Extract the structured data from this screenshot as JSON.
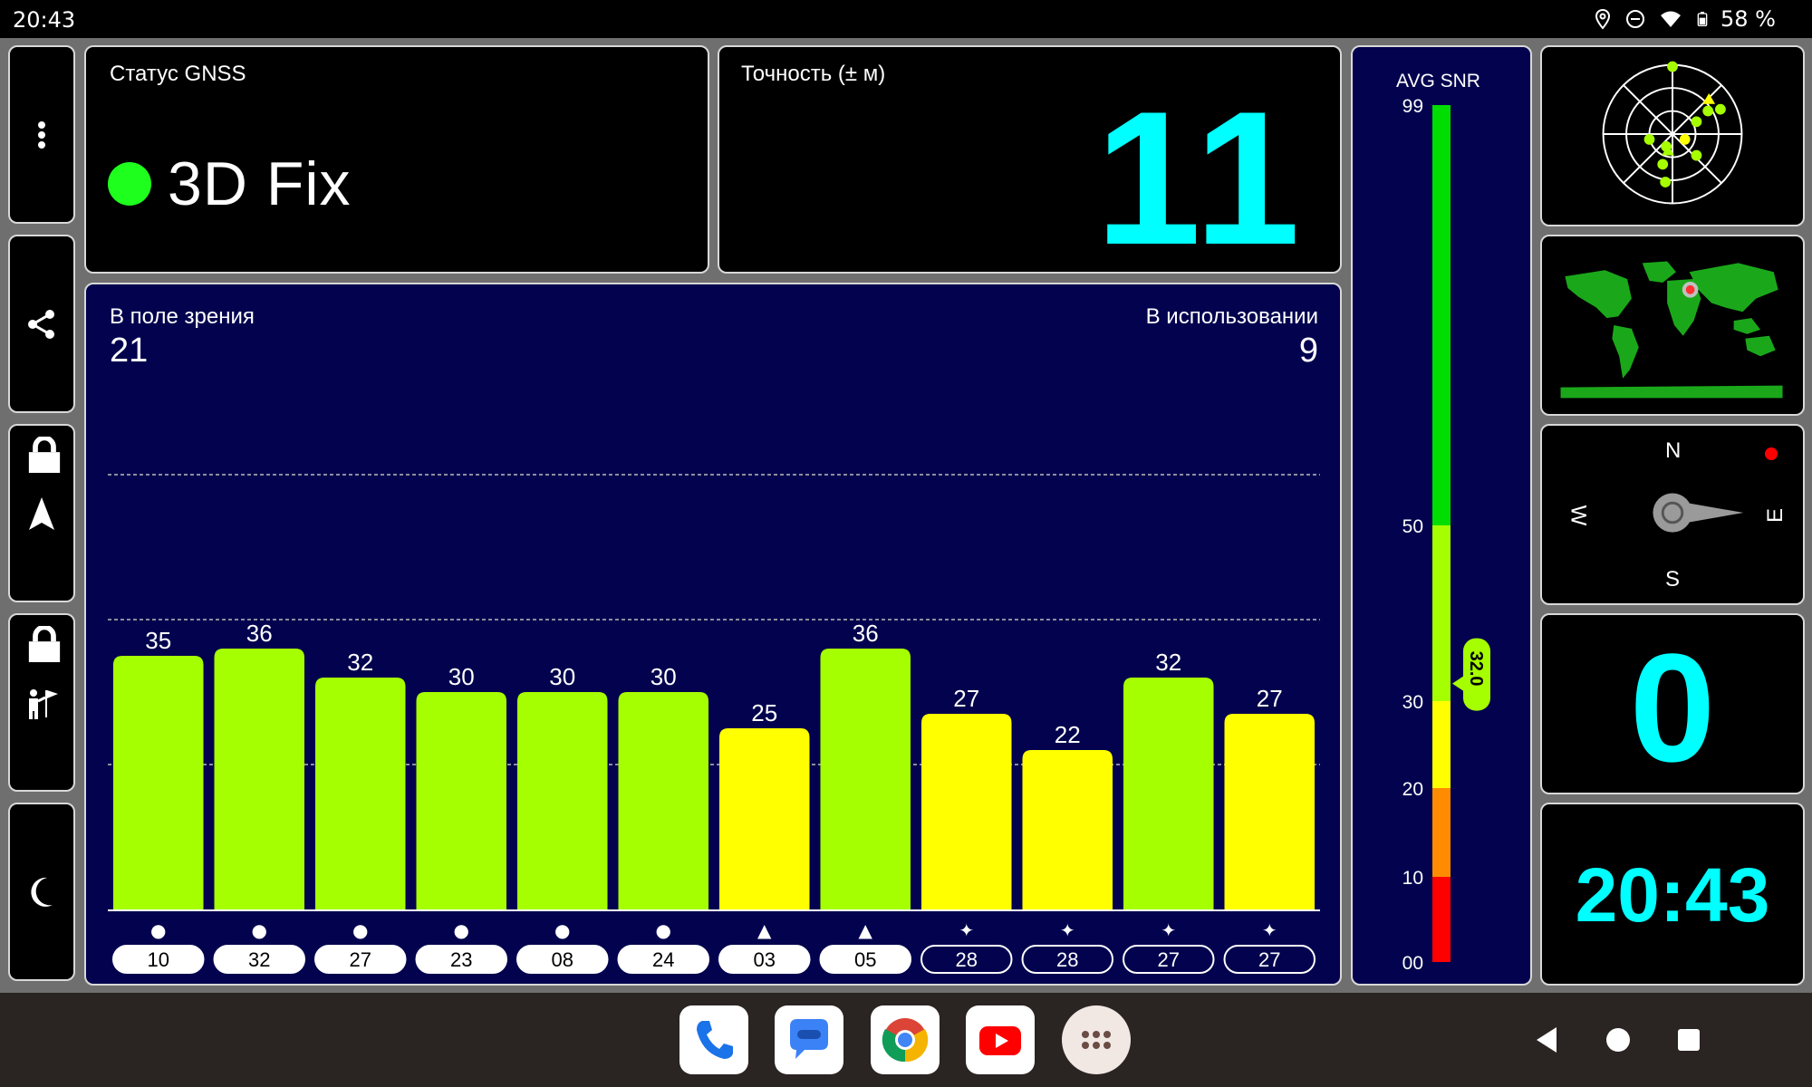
{
  "status_bar": {
    "time": "20:43",
    "battery": "58 %",
    "icons": [
      "location-icon",
      "dnd-icon",
      "wifi-icon",
      "battery-icon"
    ]
  },
  "toolbar": {
    "items": [
      "menu-icon",
      "share-icon",
      "navigation-icon",
      "poi-flag-icon",
      "night-mode-icon"
    ],
    "locked": [
      "navigation-icon",
      "poi-flag-icon"
    ]
  },
  "gnss_status": {
    "label": "Статус GNSS",
    "fix": "3D Fix",
    "fix_color": "#1eff1e"
  },
  "accuracy": {
    "label": "Точность (± м)",
    "value": "11"
  },
  "satellites": {
    "in_view_label": "В поле зрения",
    "in_view": "21",
    "in_use_label": "В использовании",
    "in_use": "9",
    "scroll_fraction": 0.57
  },
  "chart_data": {
    "type": "bar",
    "title": "",
    "categories": [
      "10",
      "32",
      "27",
      "23",
      "08",
      "24",
      "03",
      "05",
      "28",
      "28",
      "27",
      "27"
    ],
    "values": [
      35,
      36,
      32,
      30,
      30,
      30,
      25,
      36,
      27,
      22,
      32,
      27
    ],
    "constellation_symbols": [
      "●",
      "●",
      "●",
      "●",
      "●",
      "●",
      "▲",
      "▲",
      "✦",
      "✦",
      "✦",
      "✦"
    ],
    "in_use": [
      true,
      true,
      true,
      true,
      true,
      true,
      true,
      true,
      false,
      false,
      false,
      false
    ],
    "colors": [
      "#a6ff00",
      "#a6ff00",
      "#a6ff00",
      "#a6ff00",
      "#a6ff00",
      "#a6ff00",
      "#ffff00",
      "#a6ff00",
      "#ffff00",
      "#ffff00",
      "#a6ff00",
      "#ffff00"
    ],
    "ylim": [
      0,
      60
    ],
    "gridlines": [
      20,
      40,
      60
    ]
  },
  "snr": {
    "title": "AVG SNR",
    "ticks": [
      "99",
      "50",
      "30",
      "20",
      "10",
      "00"
    ],
    "avg_value": "32.0",
    "avg": 32.0
  },
  "compass": {
    "north": "N",
    "east": "E",
    "south": "S",
    "west": "W",
    "dot_color": "#ff0000"
  },
  "speed": {
    "value": "0"
  },
  "clock": {
    "value": "20:43"
  },
  "colors": {
    "accent_cyan": "#00ffff",
    "panel_blue": "#02024e",
    "bar_green": "#a6ff00",
    "bar_yellow": "#ffff00"
  },
  "dock": {
    "apps": [
      "phone-app-icon",
      "messages-app-icon",
      "chrome-app-icon",
      "youtube-app-icon",
      "app-drawer-icon"
    ]
  }
}
